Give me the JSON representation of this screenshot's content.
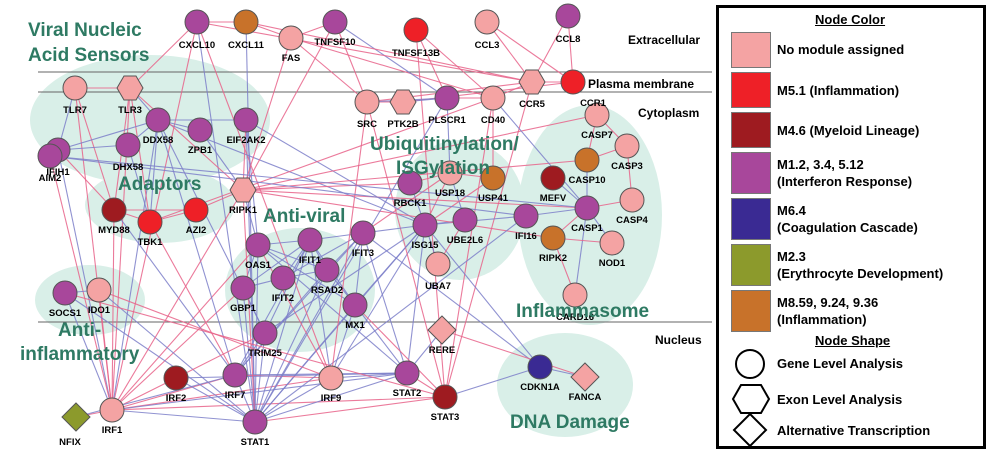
{
  "compartments": {
    "extracellular": "Extracellular",
    "plasma_membrane": "Plasma membrane",
    "cytoplasm": "Cytoplasm",
    "nucleus": "Nucleus"
  },
  "modules": {
    "viral_sensors": [
      "Viral Nucleic",
      "Acid Sensors"
    ],
    "adaptors": "Adaptors",
    "anti_viral": "Anti-viral",
    "ubiquitinylation": [
      "Ubiquitinylation/",
      "ISGylation"
    ],
    "inflammasome": "Inflammasome",
    "anti_inflammatory": [
      "Anti-",
      "inflammatory"
    ],
    "dna_damage": "DNA Damage"
  },
  "colors": {
    "none": "#f4a3a3",
    "m51": "#ee2027",
    "m46": "#9e1b20",
    "ifn": "#a8479b",
    "m64": "#3a2a93",
    "m23": "#8c9a2c",
    "m859": "#c8722a",
    "module_bg": "#d9efe8",
    "module_text": "#2e7a63"
  },
  "nodes": [
    {
      "id": "CXCL10",
      "label": "CXCL10",
      "shape": "circle",
      "color": "ifn"
    },
    {
      "id": "CXCL11",
      "label": "CXCL11",
      "shape": "circle",
      "color": "m859"
    },
    {
      "id": "FAS",
      "label": "FAS",
      "shape": "circle",
      "color": "none"
    },
    {
      "id": "TNFSF10",
      "label": "TNFSF10",
      "shape": "circle",
      "color": "ifn"
    },
    {
      "id": "TNFSF13B",
      "label": "TNFSF13B",
      "shape": "circle",
      "color": "m51"
    },
    {
      "id": "CCL3",
      "label": "CCL3",
      "shape": "circle",
      "color": "none"
    },
    {
      "id": "CCL8",
      "label": "CCL8",
      "shape": "circle",
      "color": "ifn"
    },
    {
      "id": "TLR7",
      "label": "TLR7",
      "shape": "circle",
      "color": "none"
    },
    {
      "id": "TLR3",
      "label": "TLR3",
      "shape": "hexagon",
      "color": "none"
    },
    {
      "id": "CCR5",
      "label": "CCR5",
      "shape": "hexagon",
      "color": "none"
    },
    {
      "id": "CCR1",
      "label": "CCR1",
      "shape": "circle",
      "color": "m51"
    },
    {
      "id": "SRC",
      "label": "SRC",
      "shape": "circle",
      "color": "none"
    },
    {
      "id": "PTK2B",
      "label": "PTK2B",
      "shape": "hexagon",
      "color": "none"
    },
    {
      "id": "PLSCR1",
      "label": "PLSCR1",
      "shape": "circle",
      "color": "ifn"
    },
    {
      "id": "CD40",
      "label": "CD40",
      "shape": "circle",
      "color": "none"
    },
    {
      "id": "IFIH1",
      "label": "IFIH1",
      "shape": "circle",
      "color": "ifn"
    },
    {
      "id": "DDX58",
      "label": "DDX58",
      "shape": "circle",
      "color": "ifn"
    },
    {
      "id": "DHX58",
      "label": "DHX58",
      "shape": "circle",
      "color": "ifn"
    },
    {
      "id": "ZPB1",
      "label": "ZPB1",
      "shape": "circle",
      "color": "ifn"
    },
    {
      "id": "EIF2AK2",
      "label": "EIF2AK2",
      "shape": "circle",
      "color": "ifn"
    },
    {
      "id": "AIM2",
      "label": "AIM2",
      "shape": "circle",
      "color": "ifn"
    },
    {
      "id": "MYD88",
      "label": "MYD88",
      "shape": "circle",
      "color": "m46"
    },
    {
      "id": "TBK1",
      "label": "TBK1",
      "shape": "circle",
      "color": "m51"
    },
    {
      "id": "AZI2",
      "label": "AZI2",
      "shape": "circle",
      "color": "m51"
    },
    {
      "id": "RIPK1",
      "label": "RIPK1",
      "shape": "hexagon",
      "color": "none"
    },
    {
      "id": "USP18",
      "label": "USP18",
      "shape": "circle",
      "color": "none"
    },
    {
      "id": "USP41",
      "label": "USP41",
      "shape": "circle",
      "color": "m859"
    },
    {
      "id": "RBCK1",
      "label": "RBCK1",
      "shape": "circle",
      "color": "ifn"
    },
    {
      "id": "ISG15",
      "label": "ISG15",
      "shape": "circle",
      "color": "ifn"
    },
    {
      "id": "UBE2L6",
      "label": "UBE2L6",
      "shape": "circle",
      "color": "ifn"
    },
    {
      "id": "UBA7",
      "label": "UBA7",
      "shape": "circle",
      "color": "none"
    },
    {
      "id": "CASP7",
      "label": "CASP7",
      "shape": "circle",
      "color": "none"
    },
    {
      "id": "CASP3",
      "label": "CASP3",
      "shape": "circle",
      "color": "none"
    },
    {
      "id": "MEFV",
      "label": "MEFV",
      "shape": "circle",
      "color": "m46"
    },
    {
      "id": "CASP10",
      "label": "CASP10",
      "shape": "circle",
      "color": "m859"
    },
    {
      "id": "CASP1",
      "label": "CASP1",
      "shape": "circle",
      "color": "ifn"
    },
    {
      "id": "CASP4",
      "label": "CASP4",
      "shape": "circle",
      "color": "none"
    },
    {
      "id": "IFI16",
      "label": "IFI16",
      "shape": "circle",
      "color": "ifn"
    },
    {
      "id": "RIPK2",
      "label": "RIPK2",
      "shape": "circle",
      "color": "m859"
    },
    {
      "id": "NOD1",
      "label": "NOD1",
      "shape": "circle",
      "color": "none"
    },
    {
      "id": "CARD16",
      "label": "CARD16",
      "shape": "circle",
      "color": "none"
    },
    {
      "id": "OAS1",
      "label": "OAS1",
      "shape": "circle",
      "color": "ifn"
    },
    {
      "id": "IFIT1",
      "label": "IFIT1",
      "shape": "circle",
      "color": "ifn"
    },
    {
      "id": "IFIT3",
      "label": "IFIT3",
      "shape": "circle",
      "color": "ifn"
    },
    {
      "id": "GBP1",
      "label": "GBP1",
      "shape": "circle",
      "color": "ifn"
    },
    {
      "id": "IFIT2",
      "label": "IFIT2",
      "shape": "circle",
      "color": "ifn"
    },
    {
      "id": "RSAD2",
      "label": "RSAD2",
      "shape": "circle",
      "color": "ifn"
    },
    {
      "id": "MX1",
      "label": "MX1",
      "shape": "circle",
      "color": "ifn"
    },
    {
      "id": "SOCS1",
      "label": "SOCS1",
      "shape": "circle",
      "color": "ifn"
    },
    {
      "id": "IDO1",
      "label": "IDO1",
      "shape": "circle",
      "color": "none"
    },
    {
      "id": "RERE",
      "label": "RERE",
      "shape": "diamond",
      "color": "none"
    },
    {
      "id": "TRIM25",
      "label": "TRIM25",
      "shape": "circle",
      "color": "ifn"
    },
    {
      "id": "IRF2",
      "label": "IRF2",
      "shape": "circle",
      "color": "m46"
    },
    {
      "id": "IRF7",
      "label": "IRF7",
      "shape": "circle",
      "color": "ifn"
    },
    {
      "id": "IRF9",
      "label": "IRF9",
      "shape": "circle",
      "color": "none"
    },
    {
      "id": "STAT2",
      "label": "STAT2",
      "shape": "circle",
      "color": "ifn"
    },
    {
      "id": "STAT3",
      "label": "STAT3",
      "shape": "circle",
      "color": "m46"
    },
    {
      "id": "CDKN1A",
      "label": "CDKN1A",
      "shape": "circle",
      "color": "m64"
    },
    {
      "id": "FANCA",
      "label": "FANCA",
      "shape": "diamond",
      "color": "none"
    },
    {
      "id": "NFIX",
      "label": "NFIX",
      "shape": "diamond",
      "color": "m23"
    },
    {
      "id": "IRF1",
      "label": "IRF1",
      "shape": "circle",
      "color": "none"
    },
    {
      "id": "STAT1",
      "label": "STAT1",
      "shape": "circle",
      "color": "ifn"
    }
  ],
  "legend": {
    "color_title": "Node Color",
    "color_items": [
      {
        "color": "#f4a3a3",
        "label": [
          "No module assigned"
        ]
      },
      {
        "color": "#ee2027",
        "label": [
          "M5.1 (Inflammation)"
        ]
      },
      {
        "color": "#9e1b20",
        "label": [
          "M4.6 (Myeloid Lineage)"
        ]
      },
      {
        "color": "#a8479b",
        "label": [
          "M1.2, 3.4, 5.12",
          "(Interferon Response)"
        ]
      },
      {
        "color": "#3a2a93",
        "label": [
          "M6.4",
          "(Coagulation Cascade)"
        ]
      },
      {
        "color": "#8c9a2c",
        "label": [
          "M2.3",
          "(Erythrocyte Development)"
        ]
      },
      {
        "color": "#c8722a",
        "label": [
          "M8.59, 9.24, 9.36",
          "(Inflammation)"
        ]
      }
    ],
    "shape_title": "Node Shape",
    "shape_items": [
      {
        "shape": "circle",
        "label": "Gene Level Analysis"
      },
      {
        "shape": "hexagon",
        "label": "Exon Level Analysis"
      },
      {
        "shape": "diamond",
        "label": "Alternative Transcription"
      }
    ]
  }
}
